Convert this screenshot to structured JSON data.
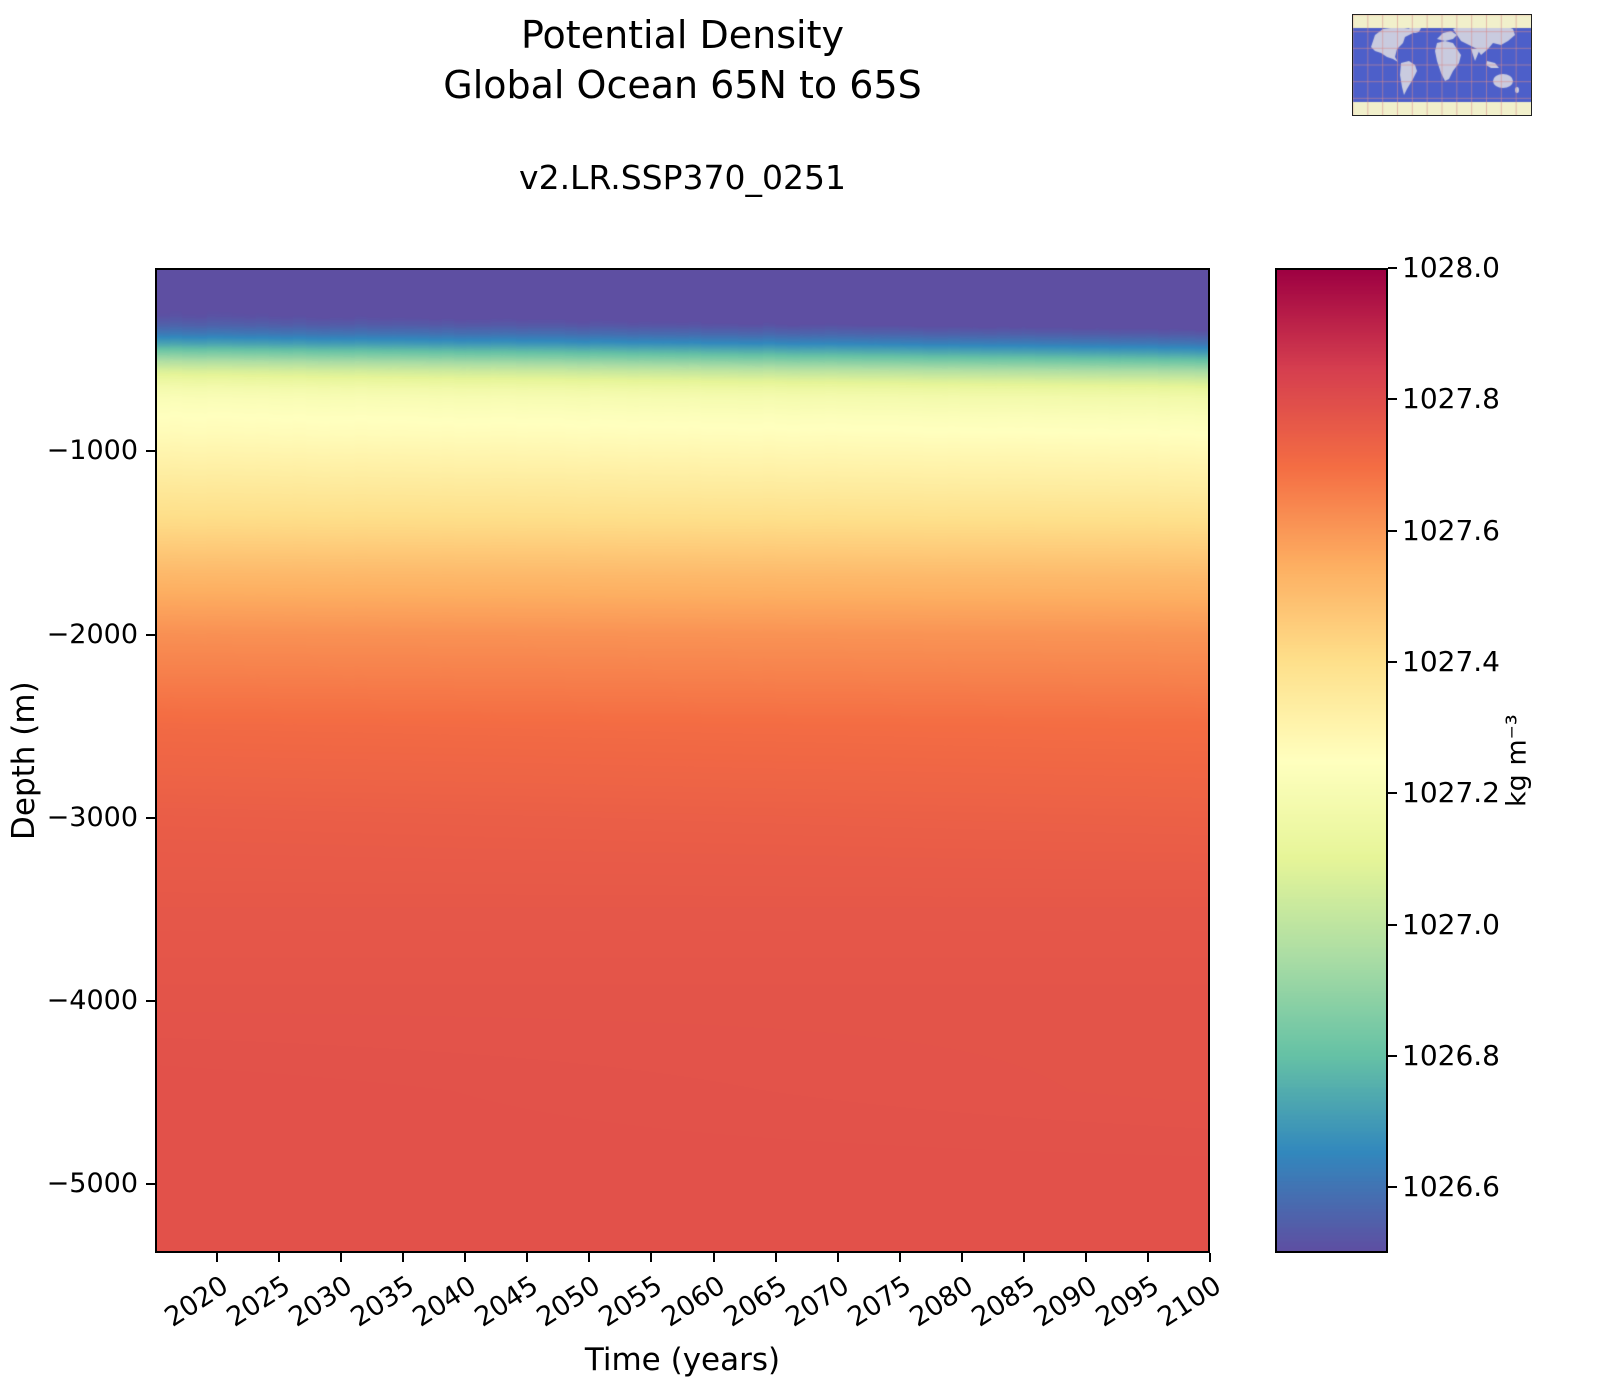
{
  "chart_data": {
    "type": "heatmap",
    "title_line1": "Potential Density",
    "title_line2": "Global Ocean 65N to 65S",
    "subtitle": "v2.LR.SSP370_0251",
    "xlabel": "Time (years)",
    "ylabel": "Depth (m)",
    "x_range": [
      2015,
      2100
    ],
    "y_range": [
      0,
      -5375
    ],
    "x_ticks": {
      "values": [
        2020,
        2025,
        2030,
        2035,
        2040,
        2045,
        2050,
        2055,
        2060,
        2065,
        2070,
        2075,
        2080,
        2085,
        2090,
        2095,
        2100
      ],
      "labels": [
        "2020",
        "2025",
        "2030",
        "2035",
        "2040",
        "2045",
        "2050",
        "2055",
        "2060",
        "2065",
        "2070",
        "2075",
        "2080",
        "2085",
        "2090",
        "2095",
        "2100"
      ]
    },
    "y_ticks": {
      "values": [
        -1000,
        -2000,
        -3000,
        -4000,
        -5000
      ],
      "labels": [
        "−1000",
        "−2000",
        "−3000",
        "−4000",
        "−5000"
      ]
    },
    "colorbar": {
      "label": "kg m⁻³",
      "vmin": 1026.5,
      "vmax": 1028.0,
      "ticks": {
        "values": [
          1028.0,
          1027.8,
          1027.6,
          1027.4,
          1027.2,
          1027.0,
          1026.8,
          1026.6
        ],
        "labels": [
          "1028.0",
          "1027.8",
          "1027.6",
          "1027.4",
          "1027.2",
          "1027.0",
          "1026.8",
          "1026.6"
        ]
      },
      "colormap_name": "Spectral_r",
      "colormap_stops": [
        "#5e4fa2",
        "#3288bd",
        "#66c2a5",
        "#abdda4",
        "#e6f598",
        "#ffffbf",
        "#fee08b",
        "#fdae61",
        "#f46d43",
        "#d53e4f",
        "#9e0142"
      ]
    },
    "heatmap": {
      "units": "kg m⁻³",
      "depths": [
        0,
        -50,
        -100,
        -150,
        -200,
        -250,
        -300,
        -350,
        -400,
        -450,
        -500,
        -550,
        -600,
        -650,
        -700,
        -800,
        -900,
        -1000,
        -1200,
        -1400,
        -1700,
        -2000,
        -2500,
        -3000,
        -3500,
        -4000,
        -4500,
        -5000,
        -5375
      ],
      "profile_2015": [
        1026.47,
        1026.47,
        1026.47,
        1026.48,
        1026.49,
        1026.51,
        1026.55,
        1026.62,
        1026.72,
        1026.85,
        1026.97,
        1027.07,
        1027.14,
        1027.19,
        1027.22,
        1027.25,
        1027.27,
        1027.3,
        1027.36,
        1027.42,
        1027.53,
        1027.62,
        1027.71,
        1027.75,
        1027.77,
        1027.78,
        1027.79,
        1027.79,
        1027.79
      ],
      "profile_2100": [
        1026.42,
        1026.42,
        1026.42,
        1026.43,
        1026.44,
        1026.45,
        1026.48,
        1026.53,
        1026.6,
        1026.7,
        1026.82,
        1026.94,
        1027.04,
        1027.12,
        1027.17,
        1027.22,
        1027.25,
        1027.28,
        1027.34,
        1027.41,
        1027.52,
        1027.61,
        1027.7,
        1027.74,
        1027.77,
        1027.78,
        1027.78,
        1027.79,
        1027.79
      ],
      "interannual_wiggle_amplitude": 0.008
    },
    "map_inset": {
      "ocean_color": "#4d5fc9",
      "land_color": "#c9cbdf",
      "masked_band_color": "#f1f0cb",
      "grid_color": "#d98c8c"
    }
  }
}
